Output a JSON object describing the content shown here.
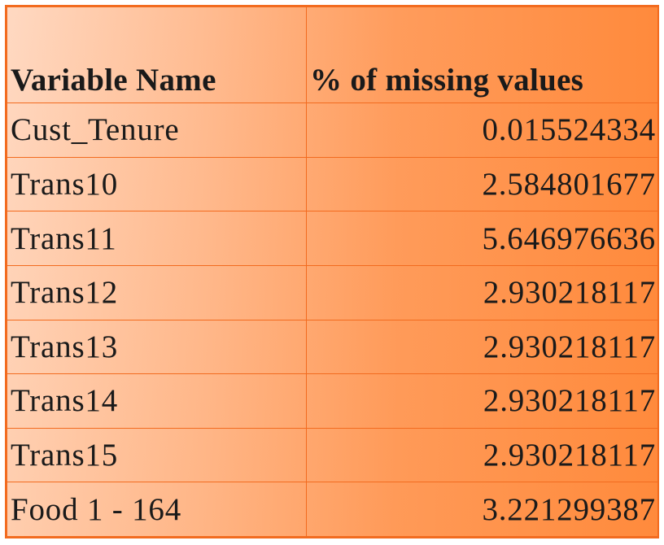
{
  "chart_data": {
    "type": "table",
    "title": "",
    "columns": [
      "Variable Name",
      "% of missing values"
    ],
    "rows": [
      {
        "name": "Cust_Tenure",
        "value": "0.015524334"
      },
      {
        "name": "Trans10",
        "value": "2.584801677"
      },
      {
        "name": "Trans11",
        "value": "5.646976636"
      },
      {
        "name": "Trans12",
        "value": "2.930218117"
      },
      {
        "name": "Trans13",
        "value": "2.930218117"
      },
      {
        "name": "Trans14",
        "value": "2.930218117"
      },
      {
        "name": "Trans15",
        "value": "2.930218117"
      },
      {
        "name": "Food 1 - 164",
        "value": "3.221299387"
      }
    ]
  },
  "colors": {
    "border": "#f26b1f",
    "gradient_light": "#ffd9c2",
    "gradient_dark": "#ff8a3c",
    "text": "#1a1a1a"
  }
}
